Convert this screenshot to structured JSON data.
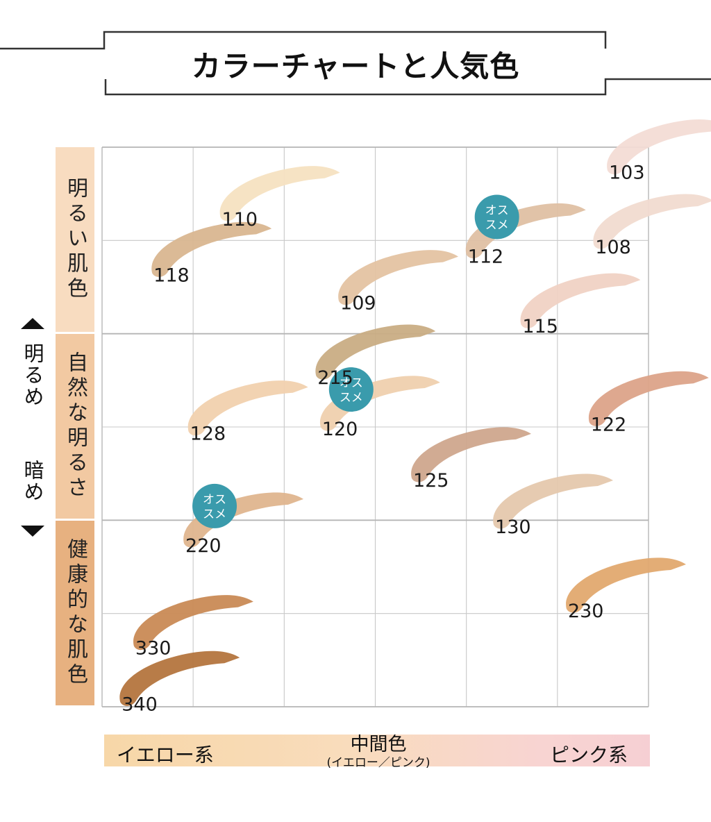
{
  "title": "カラーチャートと人気色",
  "row_labels": [
    "明るい肌色",
    "自然な明るさ",
    "健康的な肌色"
  ],
  "y_axis": {
    "top_label": "明るめ",
    "bottom_label": "暗め"
  },
  "x_axis": {
    "left_label": "イエロー系",
    "middle_label": "中間色",
    "middle_sub_label": "(イエロー／ピンク)",
    "right_label": "ピンク系"
  },
  "badge_text": [
    "オス",
    "スメ"
  ],
  "colors": {
    "grid": "#c8c8c8",
    "badge": "#3a9bac",
    "band_1": "#f8dcc0",
    "band_2": "#f2c9a2",
    "band_3": "#e7b180"
  },
  "chart_data": {
    "type": "scatter",
    "grid": true,
    "xlim": [
      0,
      6
    ],
    "ylim": [
      0,
      6
    ],
    "points": [
      {
        "label": "103",
        "x": 5.55,
        "y": 5.75,
        "color": "#f3dcd5",
        "recommended": false
      },
      {
        "label": "110",
        "x": 1.3,
        "y": 5.25,
        "color": "#f6e2c1",
        "recommended": false
      },
      {
        "label": "108",
        "x": 5.4,
        "y": 4.95,
        "color": "#f1dbd0",
        "recommended": false
      },
      {
        "label": "112",
        "x": 4.0,
        "y": 4.85,
        "color": "#dfc0a3",
        "recommended": true
      },
      {
        "label": "118",
        "x": 0.55,
        "y": 4.65,
        "color": "#d9b690",
        "recommended": false
      },
      {
        "label": "109",
        "x": 2.6,
        "y": 4.35,
        "color": "#e4c3a2",
        "recommended": false
      },
      {
        "label": "115",
        "x": 4.6,
        "y": 4.1,
        "color": "#f0d2c4",
        "recommended": false
      },
      {
        "label": "215",
        "x": 2.35,
        "y": 3.55,
        "color": "#c9ad84",
        "recommended": false
      },
      {
        "label": "122",
        "x": 5.35,
        "y": 3.05,
        "color": "#dca389",
        "recommended": false
      },
      {
        "label": "128",
        "x": 0.95,
        "y": 2.95,
        "color": "#f1d1ae",
        "recommended": false
      },
      {
        "label": "120",
        "x": 2.4,
        "y": 3.0,
        "color": "#efd0ae",
        "recommended": true
      },
      {
        "label": "125",
        "x": 3.4,
        "y": 2.45,
        "color": "#cfa78d",
        "recommended": false
      },
      {
        "label": "130",
        "x": 4.3,
        "y": 1.95,
        "color": "#e5c8ad",
        "recommended": false
      },
      {
        "label": "220",
        "x": 0.9,
        "y": 1.75,
        "color": "#dfb58e",
        "recommended": true
      },
      {
        "label": "230",
        "x": 5.1,
        "y": 1.05,
        "color": "#e1a96f",
        "recommended": false
      },
      {
        "label": "330",
        "x": 0.35,
        "y": 0.65,
        "color": "#c98a55",
        "recommended": false
      },
      {
        "label": "340",
        "x": 0.2,
        "y": 0.05,
        "color": "#b4753e",
        "recommended": false
      }
    ]
  }
}
